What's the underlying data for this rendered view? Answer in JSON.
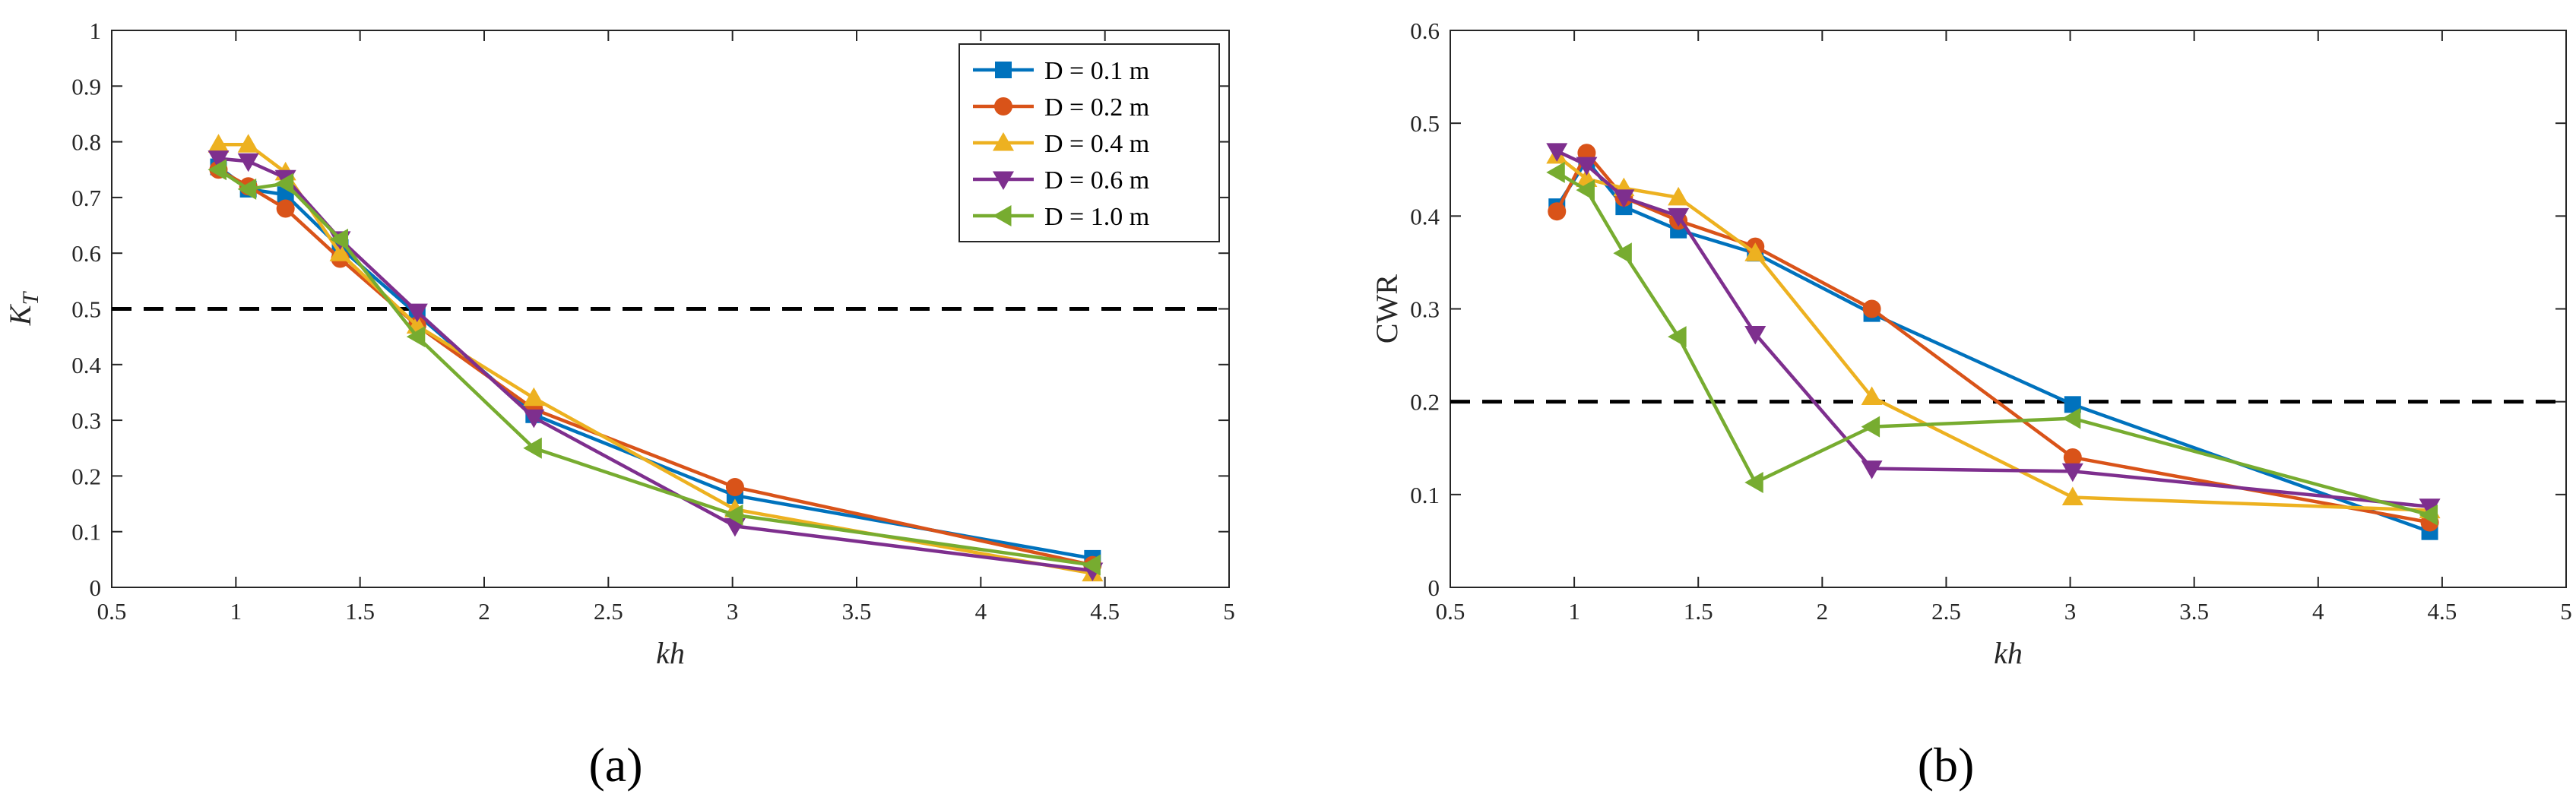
{
  "chart_data": [
    {
      "type": "line",
      "panel_label": "(a)",
      "xlabel": "kh",
      "ylabel_main": "K",
      "ylabel_sub": "T",
      "xlim": [
        0.5,
        5
      ],
      "ylim": [
        0,
        1
      ],
      "xticks": [
        "0.5",
        "1",
        "1.5",
        "2",
        "2.5",
        "3",
        "3.5",
        "4",
        "4.5",
        "5"
      ],
      "yticks": [
        "0",
        "0.1",
        "0.2",
        "0.3",
        "0.4",
        "0.5",
        "0.6",
        "0.7",
        "0.8",
        "0.9",
        "1"
      ],
      "reference_line": 0.5,
      "legend_position": "top-right",
      "legend": [
        "D = 0.1 m",
        "D = 0.2 m",
        "D = 0.4 m",
        "D = 0.6 m",
        "D = 1.0 m"
      ],
      "series": [
        {
          "name": "D = 0.1 m",
          "color": "#0072BD",
          "marker": "square",
          "x": [
            0.93,
            1.05,
            1.2,
            1.42,
            1.73,
            2.2,
            3.01,
            4.45
          ],
          "y": [
            0.755,
            0.715,
            0.705,
            0.61,
            0.49,
            0.31,
            0.165,
            0.052
          ]
        },
        {
          "name": "D = 0.2 m",
          "color": "#D95319",
          "marker": "circle",
          "x": [
            0.93,
            1.05,
            1.2,
            1.42,
            1.73,
            2.2,
            3.01,
            4.45
          ],
          "y": [
            0.75,
            0.72,
            0.68,
            0.59,
            0.47,
            0.32,
            0.18,
            0.04
          ]
        },
        {
          "name": "D = 0.4 m",
          "color": "#EDB120",
          "marker": "triangle-up",
          "x": [
            0.93,
            1.05,
            1.2,
            1.42,
            1.73,
            2.2,
            3.01,
            4.45
          ],
          "y": [
            0.795,
            0.795,
            0.745,
            0.6,
            0.47,
            0.34,
            0.14,
            0.025
          ]
        },
        {
          "name": "D = 0.6 m",
          "color": "#7E2F8E",
          "marker": "triangle-down",
          "x": [
            0.93,
            1.05,
            1.2,
            1.42,
            1.73,
            2.2,
            3.01,
            4.45
          ],
          "y": [
            0.77,
            0.765,
            0.735,
            0.625,
            0.495,
            0.305,
            0.11,
            0.03
          ]
        },
        {
          "name": "D = 1.0 m",
          "color": "#77AC30",
          "marker": "triangle-left",
          "x": [
            0.93,
            1.05,
            1.2,
            1.42,
            1.73,
            2.2,
            3.01,
            4.45
          ],
          "y": [
            0.75,
            0.715,
            0.725,
            0.625,
            0.45,
            0.25,
            0.13,
            0.04
          ]
        }
      ]
    },
    {
      "type": "line",
      "panel_label": "(b)",
      "xlabel": "kh",
      "ylabel_main": "CWR",
      "ylabel_sub": "",
      "xlim": [
        0.5,
        5
      ],
      "ylim": [
        0,
        0.6
      ],
      "xticks": [
        "0.5",
        "1",
        "1.5",
        "2",
        "2.5",
        "3",
        "3.5",
        "4",
        "4.5",
        "5"
      ],
      "yticks": [
        "0",
        "0.1",
        "0.2",
        "0.3",
        "0.4",
        "0.5",
        "0.6"
      ],
      "reference_line": 0.2,
      "series": [
        {
          "name": "D = 0.1 m",
          "color": "#0072BD",
          "marker": "square",
          "x": [
            0.93,
            1.05,
            1.2,
            1.42,
            1.73,
            2.2,
            3.01,
            4.45
          ],
          "y": [
            0.41,
            0.46,
            0.41,
            0.385,
            0.36,
            0.295,
            0.197,
            0.06
          ]
        },
        {
          "name": "D = 0.2 m",
          "color": "#D95319",
          "marker": "circle",
          "x": [
            0.93,
            1.05,
            1.2,
            1.42,
            1.73,
            2.2,
            3.01,
            4.45
          ],
          "y": [
            0.405,
            0.468,
            0.42,
            0.395,
            0.367,
            0.3,
            0.14,
            0.07
          ]
        },
        {
          "name": "D = 0.4 m",
          "color": "#EDB120",
          "marker": "triangle-up",
          "x": [
            0.93,
            1.05,
            1.2,
            1.42,
            1.73,
            2.2,
            3.01,
            4.45
          ],
          "y": [
            0.465,
            0.44,
            0.43,
            0.42,
            0.36,
            0.205,
            0.097,
            0.083
          ]
        },
        {
          "name": "D = 0.6 m",
          "color": "#7E2F8E",
          "marker": "triangle-down",
          "x": [
            0.93,
            1.05,
            1.2,
            1.42,
            1.73,
            2.2,
            3.01,
            4.45
          ],
          "y": [
            0.47,
            0.455,
            0.42,
            0.4,
            0.273,
            0.128,
            0.125,
            0.087
          ]
        },
        {
          "name": "D = 1.0 m",
          "color": "#77AC30",
          "marker": "triangle-left",
          "x": [
            0.93,
            1.05,
            1.2,
            1.42,
            1.73,
            2.2,
            3.01,
            4.45
          ],
          "y": [
            0.447,
            0.428,
            0.36,
            0.27,
            0.113,
            0.173,
            0.182,
            0.078
          ]
        }
      ]
    }
  ]
}
